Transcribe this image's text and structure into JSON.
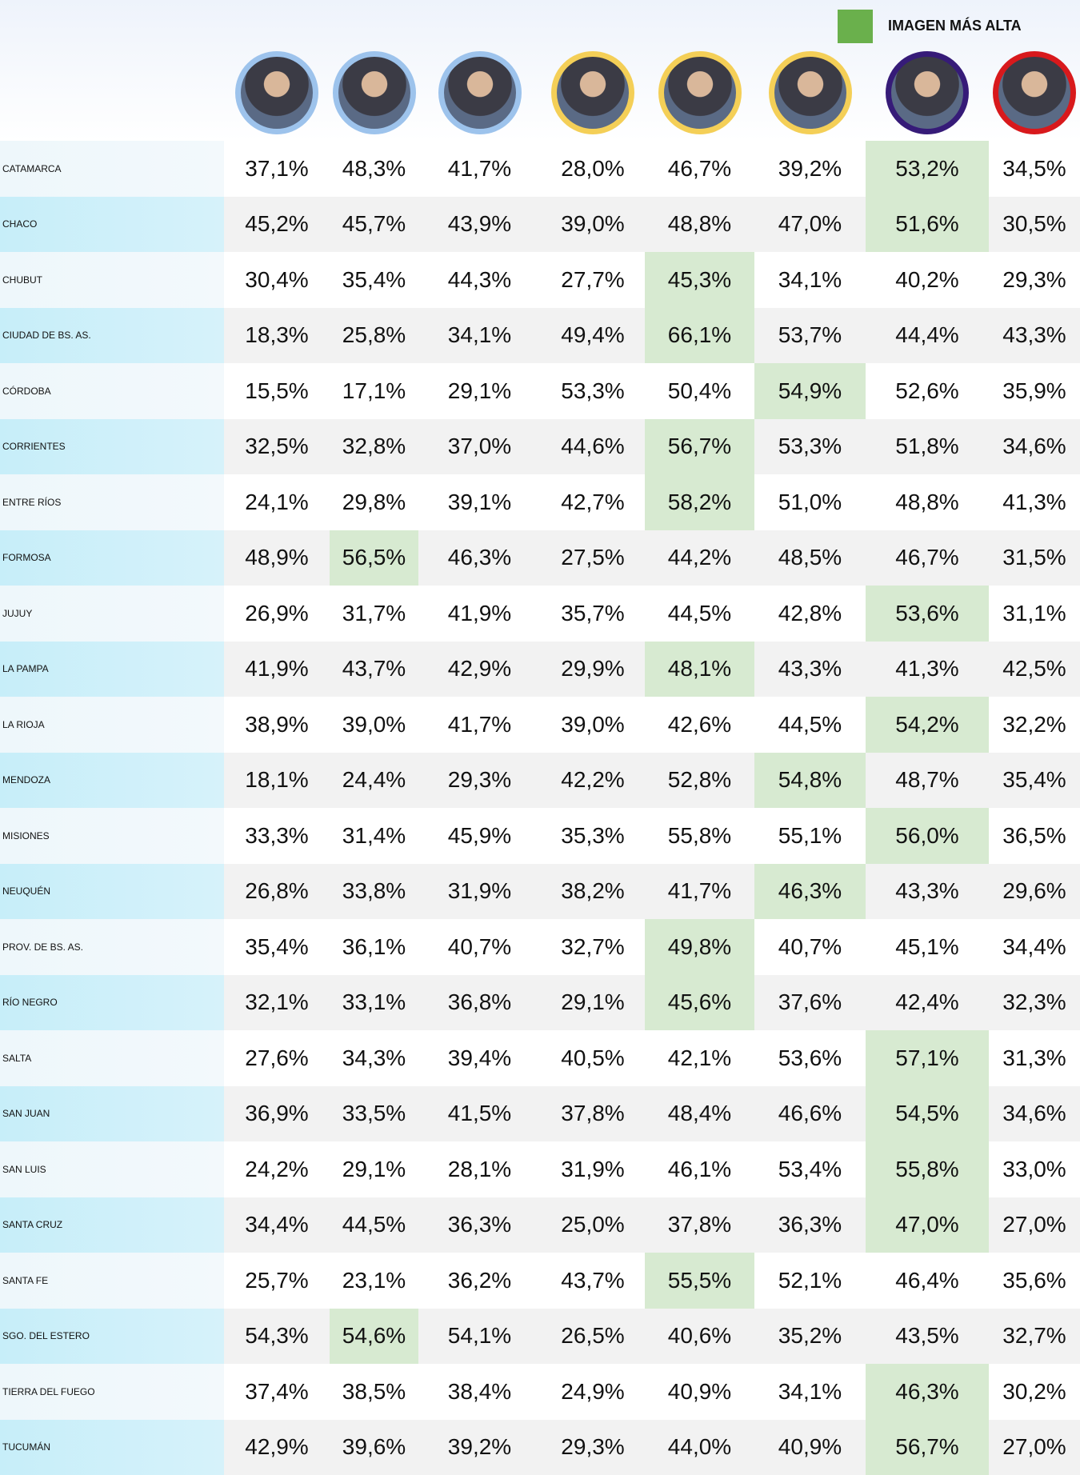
{
  "legend": {
    "label": "IMAGEN MÁS ALTA",
    "color": "#6ab04c"
  },
  "table": {
    "highlight_color": "#d7ead1",
    "columns": [
      {
        "ring": "#9dc3ec"
      },
      {
        "ring": "#9dc3ec"
      },
      {
        "ring": "#9dc3ec"
      },
      {
        "ring": "#f4cf57"
      },
      {
        "ring": "#f4cf57"
      },
      {
        "ring": "#f4cf57"
      },
      {
        "ring": "#361b78"
      },
      {
        "ring": "#d8191c"
      }
    ],
    "rows": [
      {
        "name": "CATAMARCA",
        "values": [
          "37,1%",
          "48,3%",
          "41,7%",
          "28,0%",
          "46,7%",
          "39,2%",
          "53,2%",
          "34,5%"
        ],
        "highlight": 6
      },
      {
        "name": "CHACO",
        "values": [
          "45,2%",
          "45,7%",
          "43,9%",
          "39,0%",
          "48,8%",
          "47,0%",
          "51,6%",
          "30,5%"
        ],
        "highlight": 6
      },
      {
        "name": "CHUBUT",
        "values": [
          "30,4%",
          "35,4%",
          "44,3%",
          "27,7%",
          "45,3%",
          "34,1%",
          "40,2%",
          "29,3%"
        ],
        "highlight": 4
      },
      {
        "name": "CIUDAD DE BS. AS.",
        "values": [
          "18,3%",
          "25,8%",
          "34,1%",
          "49,4%",
          "66,1%",
          "53,7%",
          "44,4%",
          "43,3%"
        ],
        "highlight": 4
      },
      {
        "name": "CÓRDOBA",
        "values": [
          "15,5%",
          "17,1%",
          "29,1%",
          "53,3%",
          "50,4%",
          "54,9%",
          "52,6%",
          "35,9%"
        ],
        "highlight": 5
      },
      {
        "name": "CORRIENTES",
        "values": [
          "32,5%",
          "32,8%",
          "37,0%",
          "44,6%",
          "56,7%",
          "53,3%",
          "51,8%",
          "34,6%"
        ],
        "highlight": 4
      },
      {
        "name": "ENTRE RÍOS",
        "values": [
          "24,1%",
          "29,8%",
          "39,1%",
          "42,7%",
          "58,2%",
          "51,0%",
          "48,8%",
          "41,3%"
        ],
        "highlight": 4
      },
      {
        "name": "FORMOSA",
        "values": [
          "48,9%",
          "56,5%",
          "46,3%",
          "27,5%",
          "44,2%",
          "48,5%",
          "46,7%",
          "31,5%"
        ],
        "highlight": 1
      },
      {
        "name": "JUJUY",
        "values": [
          "26,9%",
          "31,7%",
          "41,9%",
          "35,7%",
          "44,5%",
          "42,8%",
          "53,6%",
          "31,1%"
        ],
        "highlight": 6
      },
      {
        "name": "LA PAMPA",
        "values": [
          "41,9%",
          "43,7%",
          "42,9%",
          "29,9%",
          "48,1%",
          "43,3%",
          "41,3%",
          "42,5%"
        ],
        "highlight": 4
      },
      {
        "name": "LA RIOJA",
        "values": [
          "38,9%",
          "39,0%",
          "41,7%",
          "39,0%",
          "42,6%",
          "44,5%",
          "54,2%",
          "32,2%"
        ],
        "highlight": 6
      },
      {
        "name": "MENDOZA",
        "values": [
          "18,1%",
          "24,4%",
          "29,3%",
          "42,2%",
          "52,8%",
          "54,8%",
          "48,7%",
          "35,4%"
        ],
        "highlight": 5
      },
      {
        "name": "MISIONES",
        "values": [
          "33,3%",
          "31,4%",
          "45,9%",
          "35,3%",
          "55,8%",
          "55,1%",
          "56,0%",
          "36,5%"
        ],
        "highlight": 6
      },
      {
        "name": "NEUQUÉN",
        "values": [
          "26,8%",
          "33,8%",
          "31,9%",
          "38,2%",
          "41,7%",
          "46,3%",
          "43,3%",
          "29,6%"
        ],
        "highlight": 5
      },
      {
        "name": "PROV. DE BS. AS.",
        "values": [
          "35,4%",
          "36,1%",
          "40,7%",
          "32,7%",
          "49,8%",
          "40,7%",
          "45,1%",
          "34,4%"
        ],
        "highlight": 4
      },
      {
        "name": "RÍO NEGRO",
        "values": [
          "32,1%",
          "33,1%",
          "36,8%",
          "29,1%",
          "45,6%",
          "37,6%",
          "42,4%",
          "32,3%"
        ],
        "highlight": 4
      },
      {
        "name": "SALTA",
        "values": [
          "27,6%",
          "34,3%",
          "39,4%",
          "40,5%",
          "42,1%",
          "53,6%",
          "57,1%",
          "31,3%"
        ],
        "highlight": 6
      },
      {
        "name": "SAN JUAN",
        "values": [
          "36,9%",
          "33,5%",
          "41,5%",
          "37,8%",
          "48,4%",
          "46,6%",
          "54,5%",
          "34,6%"
        ],
        "highlight": 6
      },
      {
        "name": "SAN LUIS",
        "values": [
          "24,2%",
          "29,1%",
          "28,1%",
          "31,9%",
          "46,1%",
          "53,4%",
          "55,8%",
          "33,0%"
        ],
        "highlight": 6
      },
      {
        "name": "SANTA CRUZ",
        "values": [
          "34,4%",
          "44,5%",
          "36,3%",
          "25,0%",
          "37,8%",
          "36,3%",
          "47,0%",
          "27,0%"
        ],
        "highlight": 6
      },
      {
        "name": "SANTA FE",
        "values": [
          "25,7%",
          "23,1%",
          "36,2%",
          "43,7%",
          "55,5%",
          "52,1%",
          "46,4%",
          "35,6%"
        ],
        "highlight": 4
      },
      {
        "name": "SGO. DEL ESTERO",
        "values": [
          "54,3%",
          "54,6%",
          "54,1%",
          "26,5%",
          "40,6%",
          "35,2%",
          "43,5%",
          "32,7%"
        ],
        "highlight": 1
      },
      {
        "name": "TIERRA DEL FUEGO",
        "values": [
          "37,4%",
          "38,5%",
          "38,4%",
          "24,9%",
          "40,9%",
          "34,1%",
          "46,3%",
          "30,2%"
        ],
        "highlight": 6
      },
      {
        "name": "TUCUMÁN",
        "values": [
          "42,9%",
          "39,6%",
          "39,2%",
          "29,3%",
          "44,0%",
          "40,9%",
          "56,7%",
          "27,0%"
        ],
        "highlight": 6
      }
    ]
  }
}
